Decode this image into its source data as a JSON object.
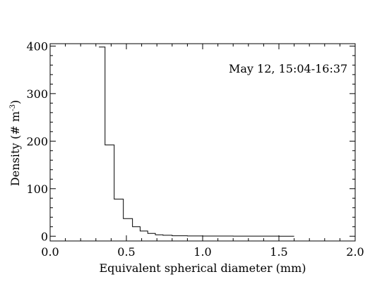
{
  "chart_data": {
    "type": "histogram",
    "title": "",
    "annotation": "May 12, 15:04-16:37",
    "xlabel": "Equivalent spherical diameter (mm)",
    "ylabel": {
      "prefix": "Density (# m",
      "sup": "-3",
      "suffix": ")"
    },
    "xlim": [
      0.0,
      2.0
    ],
    "ylim": [
      -10,
      405
    ],
    "x_ticks": [
      "0.0",
      "0.5",
      "1.0",
      "1.5",
      "2.0"
    ],
    "y_ticks": [
      "0",
      "100",
      "200",
      "300",
      "400"
    ],
    "bin_edges": [
      0.32,
      0.36,
      0.42,
      0.48,
      0.54,
      0.59,
      0.64,
      0.69,
      0.74,
      0.8,
      0.9,
      1.0,
      1.1,
      1.2,
      1.3,
      1.4,
      1.5,
      1.55,
      1.6
    ],
    "values": [
      398,
      192,
      78,
      37,
      20,
      11,
      6,
      3,
      2,
      1,
      0.5,
      0.4,
      0.3,
      0.2,
      0.15,
      0.1,
      0.05,
      0.03
    ],
    "grid": false,
    "legend": "none",
    "line_color": "#000000"
  }
}
